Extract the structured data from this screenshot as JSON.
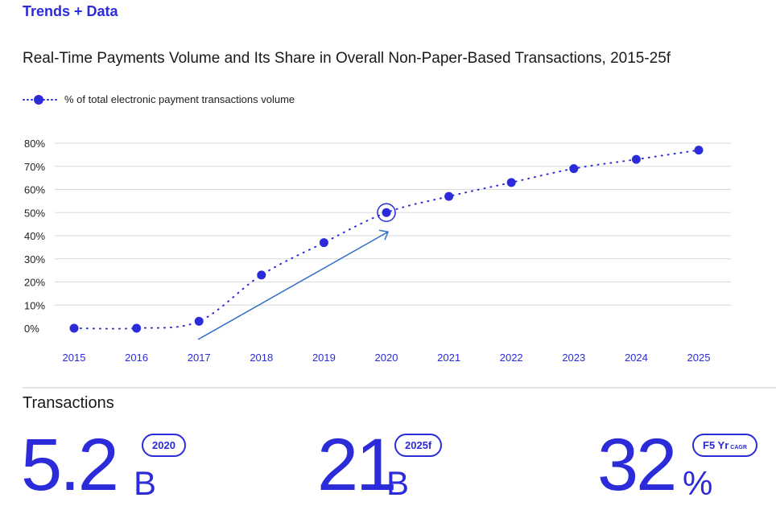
{
  "header": {
    "section_tag": "Trends + Data",
    "chart_title": "Real-Time Payments Volume and Its Share in Overall Non-Paper-Based Transactions, 2015-25f"
  },
  "legend": {
    "label": "% of total electronic payment transactions volume"
  },
  "chart_data": {
    "type": "line",
    "title": "Real-Time Payments Volume and Its Share in Overall Non-Paper-Based Transactions, 2015-25f",
    "x": [
      "2015",
      "2016",
      "2017",
      "2018",
      "2019",
      "2020",
      "2021",
      "2022",
      "2023",
      "2024",
      "2025"
    ],
    "series": [
      {
        "name": "% of total electronic payment transactions volume",
        "values": [
          0,
          0,
          3,
          23,
          37,
          50,
          57,
          63,
          69,
          73,
          77
        ]
      }
    ],
    "ylim": [
      0,
      80
    ],
    "yticks": [
      "0%",
      "10%",
      "20%",
      "30%",
      "40%",
      "50%",
      "60%",
      "70%",
      "80%"
    ],
    "grid": true,
    "highlight_year": "2020",
    "colors": {
      "series": "#2b2bd9",
      "axis_text": "#2b2bd9",
      "grid": "#d9d9d9",
      "arrow": "#2f6fc7"
    }
  },
  "transactions": {
    "title": "Transactions",
    "stats": [
      {
        "value": "5.2",
        "unit": "B",
        "badge": "2020",
        "badge_small": ""
      },
      {
        "value": "21",
        "unit": "B",
        "badge": "2025f",
        "badge_small": ""
      },
      {
        "value": "32",
        "unit": "%",
        "badge": "F5 Yr",
        "badge_small": "CAGR"
      }
    ]
  }
}
